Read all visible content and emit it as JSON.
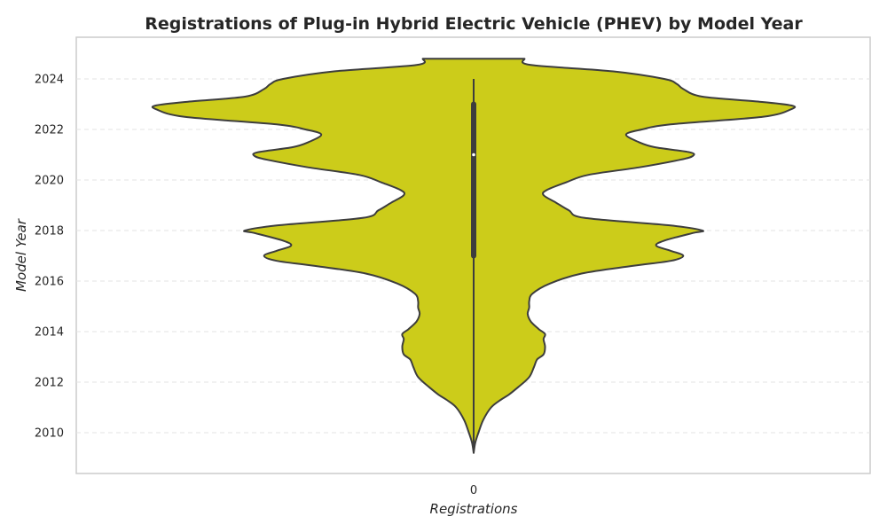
{
  "chart_data": {
    "type": "violin",
    "title": "Registrations of Plug-in Hybrid Electric Vehicle (PHEV) by Model Year",
    "xlabel": "Registrations",
    "ylabel": "Model Year",
    "x_tick_labels": [
      "0"
    ],
    "y_ticks": [
      2010,
      2012,
      2014,
      2016,
      2018,
      2020,
      2022,
      2024
    ],
    "ylim": [
      2008.8,
      2025.7
    ],
    "grid": "horizontal dashed",
    "fill_color": "#cccc1a",
    "density_profile": {
      "year": [
        2009.2,
        2009.6,
        2010.0,
        2010.5,
        2011.0,
        2011.3,
        2011.5,
        2011.8,
        2012.2,
        2012.6,
        2012.9,
        2013.1,
        2013.4,
        2013.7,
        2013.9,
        2014.1,
        2014.4,
        2014.7,
        2014.95,
        2015.2,
        2015.5,
        2015.9,
        2016.3,
        2016.6,
        2016.8,
        2017.0,
        2017.2,
        2017.4,
        2017.6,
        2017.9,
        2018.0,
        2018.2,
        2018.5,
        2018.8,
        2019.1,
        2019.4,
        2019.6,
        2019.9,
        2020.2,
        2020.5,
        2020.8,
        2020.95,
        2021.1,
        2021.3,
        2021.5,
        2021.8,
        2022.0,
        2022.2,
        2022.5,
        2022.8,
        2022.95,
        2023.1,
        2023.3,
        2023.6,
        2023.8,
        2024.0,
        2024.3,
        2024.55,
        2024.8
      ],
      "half_width": [
        0.0,
        0.005,
        0.015,
        0.03,
        0.055,
        0.085,
        0.11,
        0.14,
        0.175,
        0.19,
        0.2,
        0.22,
        0.225,
        0.22,
        0.225,
        0.205,
        0.18,
        0.17,
        0.175,
        0.175,
        0.185,
        0.24,
        0.34,
        0.5,
        0.62,
        0.66,
        0.62,
        0.575,
        0.6,
        0.69,
        0.72,
        0.62,
        0.35,
        0.3,
        0.26,
        0.22,
        0.23,
        0.29,
        0.36,
        0.52,
        0.65,
        0.69,
        0.68,
        0.57,
        0.52,
        0.48,
        0.53,
        0.62,
        0.91,
        1.0,
        1.0,
        0.9,
        0.72,
        0.66,
        0.64,
        0.6,
        0.44,
        0.18,
        0.16
      ]
    },
    "quartiles": {
      "min": 2009.2,
      "q1": 2017.0,
      "median": 2021.0,
      "q3": 2023.0,
      "max": 2024.0
    }
  }
}
